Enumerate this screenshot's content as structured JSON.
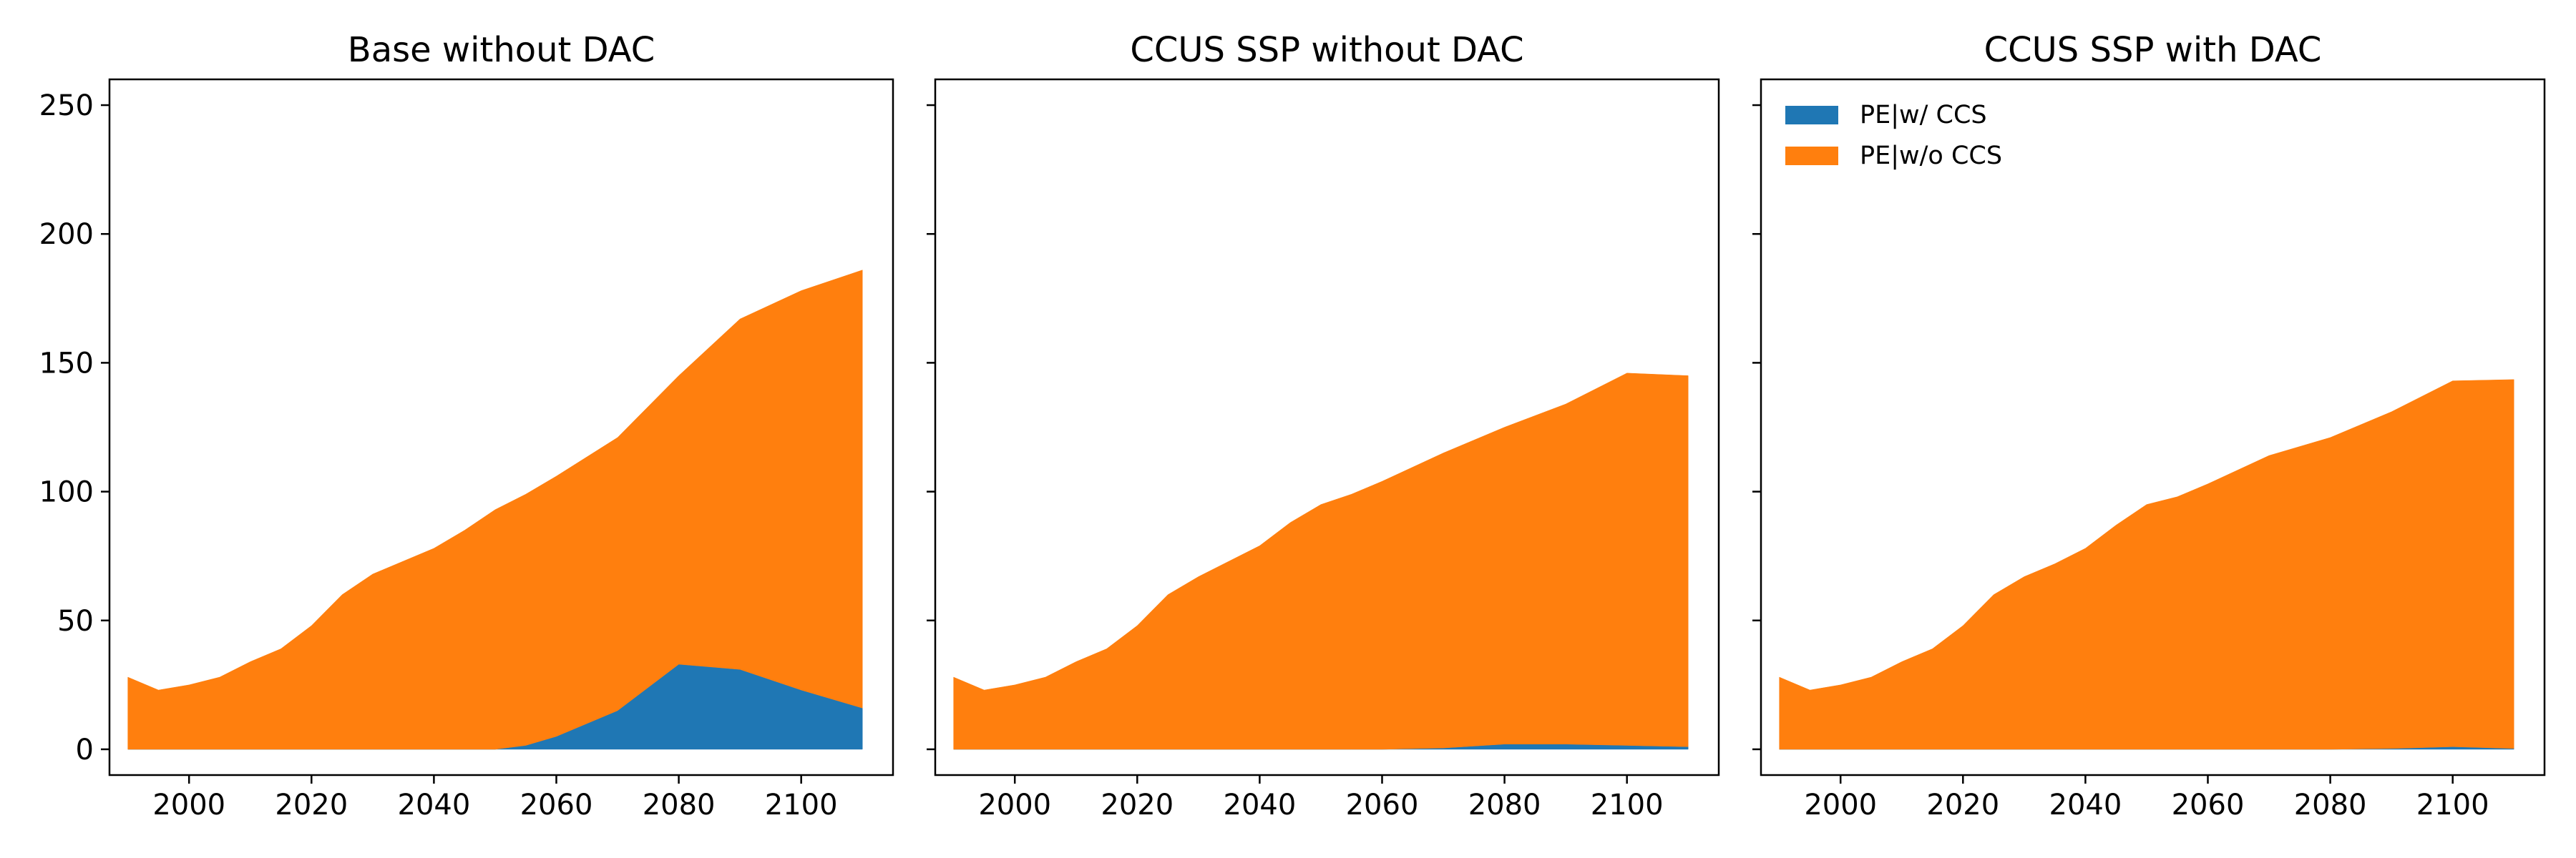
{
  "chart_data": [
    {
      "type": "area",
      "stacked": true,
      "title": "Base without DAC",
      "xlabel": "",
      "ylabel": "",
      "xlim": [
        1987,
        2115
      ],
      "ylim": [
        -10,
        260
      ],
      "xticks": [
        2000,
        2020,
        2040,
        2060,
        2080,
        2100
      ],
      "yticks": [
        0,
        50,
        100,
        150,
        200,
        250
      ],
      "x": [
        1990,
        1995,
        2000,
        2005,
        2010,
        2015,
        2020,
        2025,
        2030,
        2035,
        2040,
        2045,
        2050,
        2055,
        2060,
        2070,
        2080,
        2090,
        2100,
        2110
      ],
      "series": [
        {
          "name": "PE|w/ CCS",
          "color": "#1f77b4",
          "values": [
            0,
            0,
            0,
            0,
            0,
            0,
            0,
            0,
            0,
            0,
            0,
            0,
            0,
            1.5,
            5,
            15,
            33,
            31,
            23,
            16
          ]
        },
        {
          "name": "PE|w/o CCS",
          "color": "#ff7f0e",
          "values": [
            28,
            23,
            25,
            28,
            34,
            39,
            48,
            60,
            68,
            73,
            78,
            85,
            93,
            97.5,
            101,
            106,
            112,
            136,
            155,
            170
          ]
        }
      ]
    },
    {
      "type": "area",
      "stacked": true,
      "title": "CCUS SSP without DAC",
      "xlabel": "",
      "ylabel": "",
      "xlim": [
        1987,
        2115
      ],
      "ylim": [
        -10,
        260
      ],
      "xticks": [
        2000,
        2020,
        2040,
        2060,
        2080,
        2100
      ],
      "yticks": [
        0,
        50,
        100,
        150,
        200,
        250
      ],
      "x": [
        1990,
        1995,
        2000,
        2005,
        2010,
        2015,
        2020,
        2025,
        2030,
        2035,
        2040,
        2045,
        2050,
        2055,
        2060,
        2070,
        2080,
        2090,
        2100,
        2110
      ],
      "series": [
        {
          "name": "PE|w/ CCS",
          "color": "#1f77b4",
          "values": [
            0,
            0,
            0,
            0,
            0,
            0,
            0,
            0,
            0,
            0,
            0,
            0,
            0,
            0,
            0,
            0.5,
            2,
            2,
            1.5,
            1
          ]
        },
        {
          "name": "PE|w/o CCS",
          "color": "#ff7f0e",
          "values": [
            28,
            23,
            25,
            28,
            34,
            39,
            48,
            60,
            67,
            73,
            79,
            88,
            95,
            99,
            104,
            114.5,
            123,
            132,
            144.5,
            144
          ]
        }
      ]
    },
    {
      "type": "area",
      "stacked": true,
      "title": "CCUS SSP with DAC",
      "xlabel": "",
      "ylabel": "",
      "xlim": [
        1987,
        2115
      ],
      "ylim": [
        -10,
        260
      ],
      "xticks": [
        2000,
        2020,
        2040,
        2060,
        2080,
        2100
      ],
      "yticks": [
        0,
        50,
        100,
        150,
        200,
        250
      ],
      "legend": "top-left",
      "x": [
        1990,
        1995,
        2000,
        2005,
        2010,
        2015,
        2020,
        2025,
        2030,
        2035,
        2040,
        2045,
        2050,
        2055,
        2060,
        2070,
        2080,
        2090,
        2100,
        2110
      ],
      "series": [
        {
          "name": "PE|w/ CCS",
          "color": "#1f77b4",
          "values": [
            0,
            0,
            0,
            0,
            0,
            0,
            0,
            0,
            0,
            0,
            0,
            0,
            0,
            0,
            0,
            0,
            0,
            0.3,
            1,
            0.3
          ]
        },
        {
          "name": "PE|w/o CCS",
          "color": "#ff7f0e",
          "values": [
            28,
            23,
            25,
            28,
            34,
            39,
            48,
            60,
            67,
            72,
            78,
            87,
            95,
            98,
            103,
            114,
            121,
            130.7,
            142,
            143.2
          ]
        }
      ]
    }
  ]
}
